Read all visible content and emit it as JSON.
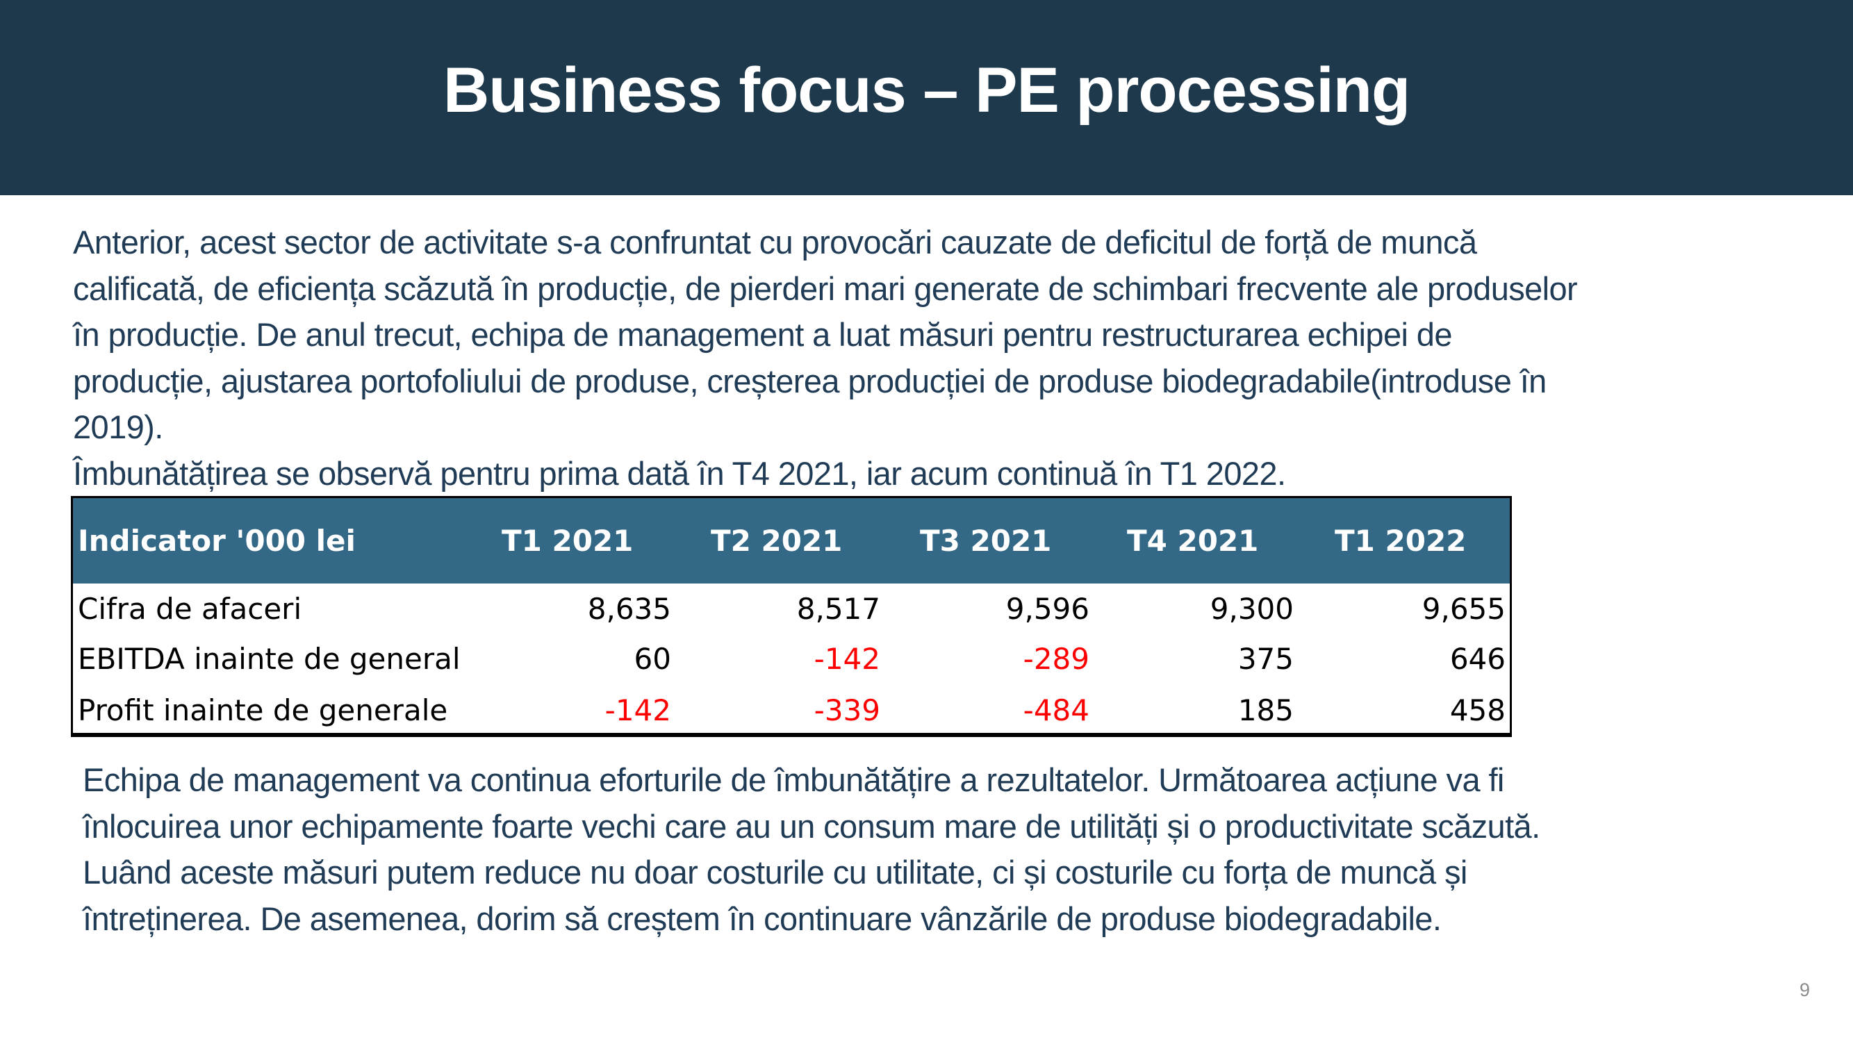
{
  "title": "Business focus – PE processing",
  "intro_lines": [
    "Anterior, acest sector de activitate s-a confruntat cu provocări cauzate de deficitul de forță de muncă",
    "calificată, de eficiența scăzută în producție, de pierderi mari generate de schimbari frecvente ale produselor",
    "în producție. De anul trecut, echipa de management a luat măsuri pentru restructurarea echipei de",
    "producție, ajustarea portofoliului de produse, creșterea producției de produse biodegradabile(introduse în",
    "2019).",
    "Îmbunătățirea se observă pentru prima dată în T4 2021, iar acum continuă în T1 2022."
  ],
  "table": {
    "headers": [
      "Indicator '000 lei",
      "T1 2021",
      "T2 2021",
      "T3 2021",
      "T4 2021",
      "T1 2022"
    ],
    "rows": [
      {
        "label": "Cifra de afaceri",
        "values": [
          "8,635",
          "8,517",
          "9,596",
          "9,300",
          "9,655"
        ]
      },
      {
        "label": "EBITDA inainte de general",
        "values": [
          "60",
          "-142",
          "-289",
          "375",
          "646"
        ]
      },
      {
        "label": "Profit inainte de generale",
        "values": [
          "-142",
          "-339",
          "-484",
          "185",
          "458"
        ]
      }
    ],
    "header_color": "#336886",
    "negative_color": "#ff0000"
  },
  "outro_lines": [
    "Echipa de management va continua eforturile de îmbunătățire a rezultatelor. Următoarea acțiune va fi",
    "înlocuirea unor echipamente foarte vechi care au un consum mare de utilități și o productivitate scăzută.",
    "Luând aceste măsuri putem reduce nu doar costurile cu utilitate, ci și costurile cu forța de muncă și",
    "întreținerea. De asemenea, dorim să creștem în continuare vânzările de produse biodegradabile."
  ],
  "page_number": "9",
  "colors": {
    "header_band": "#1e394c",
    "body_text": "#1f3b55"
  }
}
